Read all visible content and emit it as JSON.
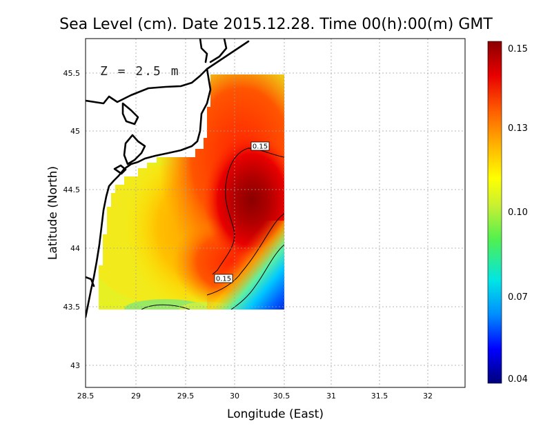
{
  "title": "Sea Level (cm). Date 2015.12.28. Time 00(h):00(m) GMT",
  "depth_label": "Z = 2.5 m",
  "axes": {
    "xlabel": "Longitude (East)",
    "ylabel": "Latitude (North)",
    "x_ticks": [
      "28.5",
      "29",
      "29.5",
      "30",
      "30.5",
      "31",
      "31.5",
      "32"
    ],
    "y_ticks": [
      "45.5",
      "45",
      "44.5",
      "44",
      "43.5",
      "43"
    ]
  },
  "colorbar": {
    "ticks": [
      "0.15",
      "0.13",
      "0.10",
      "0.07",
      "0.04"
    ],
    "min": 0.04,
    "max": 0.15,
    "colors": [
      "#00007a",
      "#0000ff",
      "#008cff",
      "#00e5e5",
      "#50f050",
      "#c8f032",
      "#ffff00",
      "#ffb000",
      "#ff5a00",
      "#e80000",
      "#8b0000"
    ]
  },
  "contour_labels": [
    "0.15",
    "0.15"
  ],
  "colors": {
    "land_outline": "#000000",
    "grid": "#a0a0a0"
  }
}
